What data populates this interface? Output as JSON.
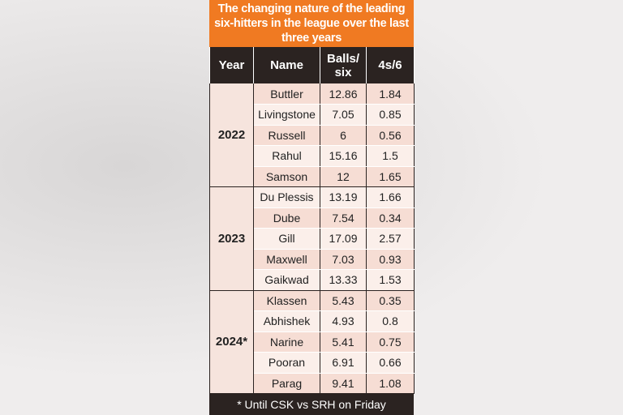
{
  "title": "The changing nature of the leading six-hitters in the league over the last three years",
  "table": {
    "header": [
      "Year",
      "Name",
      "Balls/ six",
      "4s/6"
    ],
    "groups": [
      {
        "year": "2022",
        "rows": [
          [
            "Buttler",
            12.86,
            1.84
          ],
          [
            "Livingstone",
            7.05,
            0.85
          ],
          [
            "Russell",
            6,
            0.56
          ],
          [
            "Rahul",
            15.16,
            1.5
          ],
          [
            "Samson",
            12,
            1.65
          ]
        ]
      },
      {
        "year": "2023",
        "rows": [
          [
            "Du Plessis",
            13.19,
            1.66
          ],
          [
            "Dube",
            7.54,
            0.34
          ],
          [
            "Gill",
            17.09,
            2.57
          ],
          [
            "Maxwell",
            7.03,
            0.93
          ],
          [
            "Gaikwad",
            13.33,
            1.53
          ]
        ]
      },
      {
        "year": "2024*",
        "rows": [
          [
            "Klassen",
            5.43,
            0.35
          ],
          [
            "Abhishek",
            4.93,
            0.8
          ],
          [
            "Narine",
            5.41,
            0.75
          ],
          [
            "Pooran",
            6.91,
            0.66
          ],
          [
            "Parag",
            9.41,
            1.08
          ]
        ]
      }
    ]
  },
  "footnote": "* Until CSK vs SRH on Friday"
}
